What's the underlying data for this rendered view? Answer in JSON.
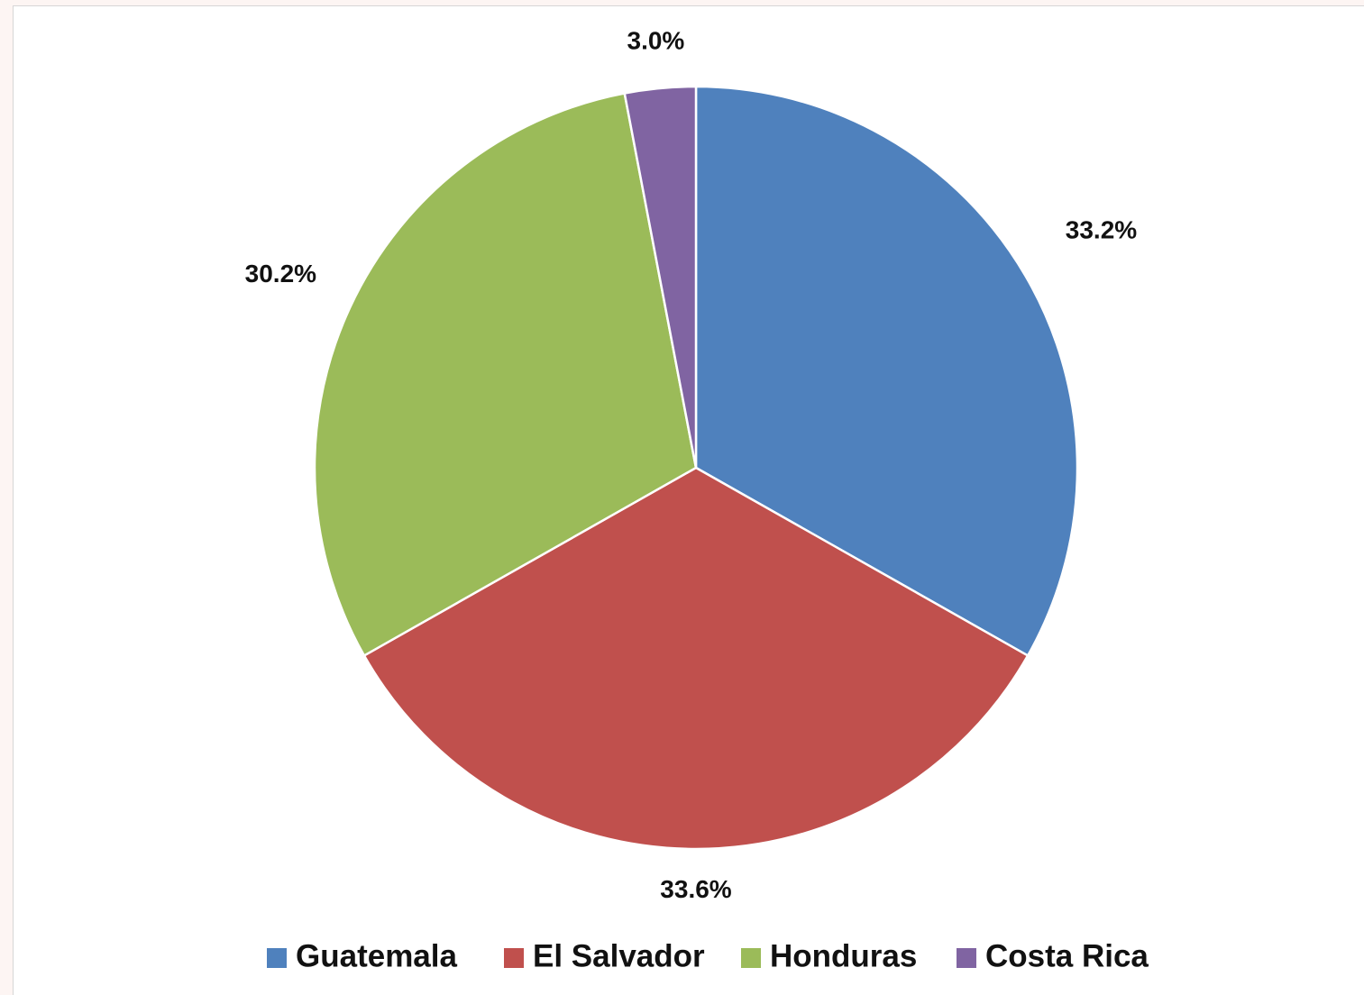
{
  "chart_data": {
    "type": "pie",
    "title": "",
    "categories": [
      "Guatemala",
      "El Salvador",
      "Honduras",
      "Costa Rica"
    ],
    "values": [
      33.2,
      33.6,
      30.2,
      3.0
    ],
    "labels": [
      "33.2%",
      "33.6%",
      "30.2%",
      "3.0%"
    ],
    "colors": [
      "#4f81bd",
      "#c0504d",
      "#9bbb59",
      "#8064a2"
    ],
    "start_angle_deg": 0,
    "direction": "clockwise",
    "legend_position": "bottom"
  }
}
